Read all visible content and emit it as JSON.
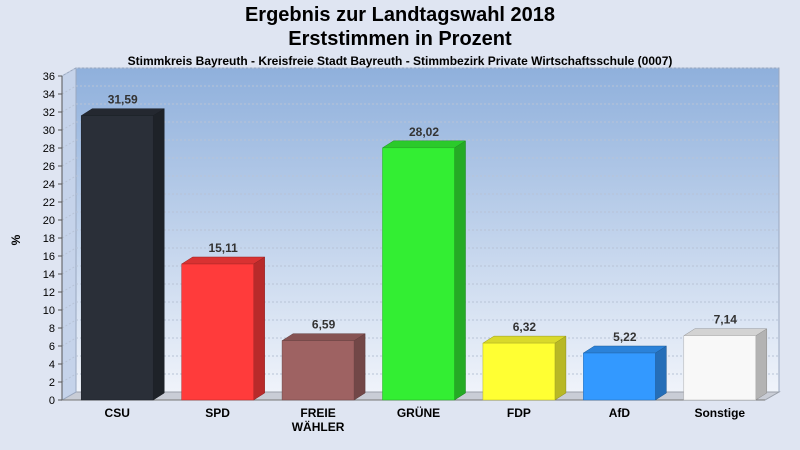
{
  "chart_data": {
    "type": "bar",
    "title": "Ergebnis zur Landtagswahl 2018",
    "subtitle": "Erststimmen in Prozent",
    "caption": "Stimmkreis Bayreuth - Kreisfreie Stadt Bayreuth - Stimmbezirk Private Wirtschaftsschule (0007)",
    "ylabel": "%",
    "xlabel": "",
    "ylim": [
      0,
      36
    ],
    "ytick_step": 2,
    "grid": true,
    "categories": [
      "CSU",
      "SPD",
      "FREIE WÄHLER",
      "GRÜNE",
      "FDP",
      "AfD",
      "Sonstige"
    ],
    "category_lines": [
      [
        "CSU"
      ],
      [
        "SPD"
      ],
      [
        "FREIE",
        "WÄHLER"
      ],
      [
        "GRÜNE"
      ],
      [
        "FDP"
      ],
      [
        "AfD"
      ],
      [
        "Sonstige"
      ]
    ],
    "values": [
      31.59,
      15.11,
      6.59,
      28.02,
      6.32,
      5.22,
      7.14
    ],
    "value_labels": [
      "31,59",
      "15,11",
      "6,59",
      "28,02",
      "6,32",
      "5,22",
      "7,14"
    ],
    "colors": [
      "#2a2f38",
      "#ff3b3b",
      "#9e6262",
      "#33ee33",
      "#ffff33",
      "#3399ff",
      "#f8f8f8"
    ]
  }
}
